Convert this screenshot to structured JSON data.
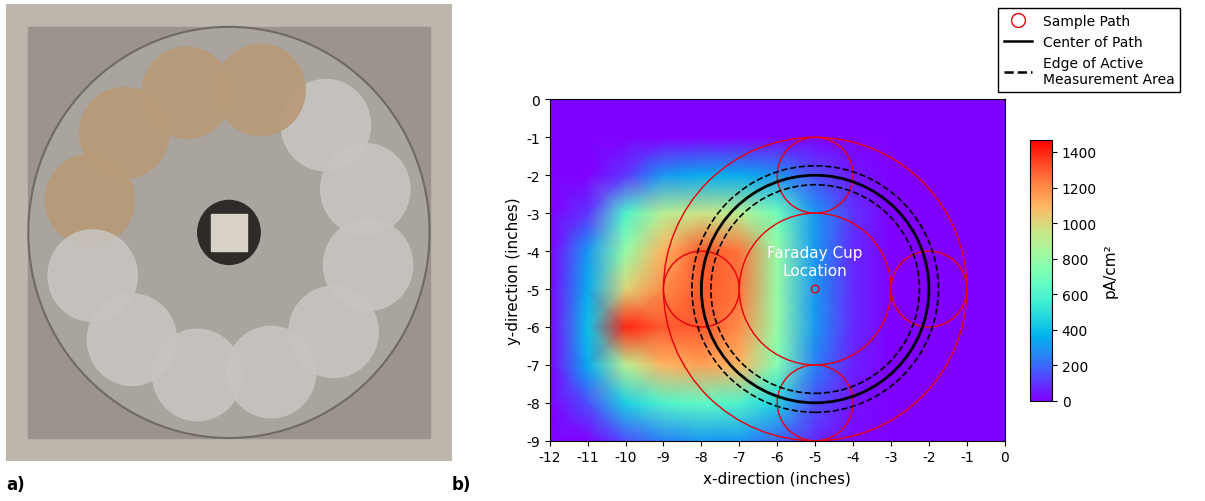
{
  "photo": {
    "panel_label": "a)"
  },
  "chart_data": {
    "type": "heatmap",
    "panel_label": "b)",
    "x_label": "x-direction (inches)",
    "y_label": "y-direction (inches)",
    "xlim": [
      -12,
      0
    ],
    "ylim": [
      -9,
      0
    ],
    "xticks": [
      -12,
      -11,
      -10,
      -9,
      -8,
      -7,
      -6,
      -5,
      -4,
      -3,
      -2,
      -1,
      0
    ],
    "yticks": [
      -9,
      -8,
      -7,
      -6,
      -5,
      -4,
      -3,
      -2,
      -1,
      0
    ],
    "x": [
      -12,
      -11,
      -10,
      -9,
      -8,
      -7,
      -6,
      -5,
      -4,
      -3,
      -2,
      -1,
      0
    ],
    "y": [
      0,
      -1,
      -2,
      -3,
      -4,
      -5,
      -6,
      -7,
      -8,
      -9
    ],
    "cells": [
      [
        0,
        0,
        0,
        0,
        0,
        0,
        0,
        0,
        0,
        0,
        0,
        0,
        0
      ],
      [
        0,
        0,
        0,
        0,
        0,
        0,
        0,
        0,
        0,
        0,
        0,
        0,
        0
      ],
      [
        0,
        0,
        100,
        300,
        350,
        350,
        300,
        150,
        50,
        0,
        0,
        0,
        0
      ],
      [
        0,
        100,
        600,
        900,
        950,
        900,
        700,
        300,
        100,
        0,
        0,
        0,
        0
      ],
      [
        0,
        300,
        800,
        1100,
        1300,
        1250,
        800,
        300,
        80,
        0,
        0,
        0,
        0
      ],
      [
        0,
        350,
        1000,
        1200,
        1300,
        1250,
        800,
        300,
        80,
        0,
        0,
        0,
        0
      ],
      [
        0,
        400,
        1400,
        1300,
        1300,
        1200,
        800,
        300,
        80,
        0,
        0,
        0,
        0
      ],
      [
        0,
        350,
        900,
        1100,
        1150,
        1100,
        750,
        250,
        60,
        0,
        0,
        0,
        0
      ],
      [
        0,
        150,
        450,
        600,
        650,
        600,
        450,
        150,
        40,
        0,
        0,
        0,
        0
      ],
      [
        0,
        0,
        150,
        250,
        300,
        300,
        200,
        80,
        20,
        0,
        0,
        0,
        0
      ]
    ],
    "colorbar_label": "pA/cm²",
    "colorbar_range": [
      0,
      1470
    ],
    "colorbar_ticks": [
      0,
      200,
      400,
      600,
      800,
      1000,
      1200,
      1400
    ],
    "legend": "upper right",
    "series": [
      {
        "name": "Sample Path",
        "color": "#e8000b",
        "marker": "o",
        "line_style": "none"
      },
      {
        "name": "Center of Path",
        "color": "#000000",
        "line_style": "solid"
      },
      {
        "name": "Edge of Active\nMeasurement Area",
        "color": "#000000",
        "line_style": "dashed"
      }
    ],
    "path_center": [
      -5,
      -5
    ],
    "path_radius": 3,
    "active_edge_radii": [
      2.75,
      3.25
    ],
    "sample_radius": 1,
    "sample_positions": [
      [
        -8,
        -5
      ],
      [
        -2,
        -5
      ],
      [
        -5,
        -2
      ],
      [
        -5,
        -8
      ]
    ],
    "envelope_radii": [
      2,
      4
    ],
    "faraday_cup": {
      "label": "Faraday Cup\nLocation",
      "position": [
        -5,
        -5
      ],
      "radius": 0.1
    }
  }
}
